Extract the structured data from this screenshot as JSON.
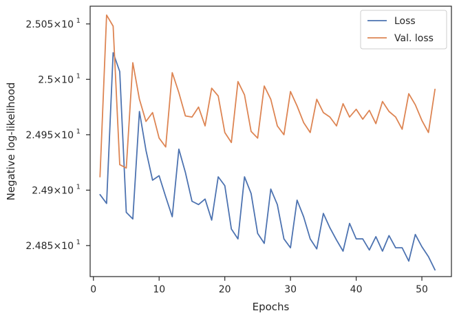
{
  "chart_data": {
    "type": "line",
    "title": "",
    "xlabel": "Epochs",
    "ylabel": "Negative log-likelihood",
    "xlim": [
      -0.5,
      54.5
    ],
    "ylim": [
      24.822,
      25.066
    ],
    "grid": false,
    "legend_position": "top-right",
    "x_ticks": [
      0,
      10,
      20,
      30,
      40,
      50
    ],
    "y_ticks": [
      24.85,
      24.9,
      24.95,
      25.0,
      25.05
    ],
    "x_tick_labels": [
      "0",
      "10",
      "20",
      "30",
      "40",
      "50"
    ],
    "y_tick_labels": [
      {
        "mantissa": "2.485",
        "exponent": "1"
      },
      {
        "mantissa": "2.49",
        "exponent": "1"
      },
      {
        "mantissa": "2.495",
        "exponent": "1"
      },
      {
        "mantissa": "2.5",
        "exponent": "1"
      },
      {
        "mantissa": "2.505",
        "exponent": "1"
      }
    ],
    "y_tick_times": "×10",
    "x": [
      1,
      2,
      3,
      4,
      5,
      6,
      7,
      8,
      9,
      10,
      11,
      12,
      13,
      14,
      15,
      16,
      17,
      18,
      19,
      20,
      21,
      22,
      23,
      24,
      25,
      26,
      27,
      28,
      29,
      30,
      31,
      32,
      33,
      34,
      35,
      36,
      37,
      38,
      39,
      40,
      41,
      42,
      43,
      44,
      45,
      46,
      47,
      48,
      49,
      50,
      51,
      52
    ],
    "series": [
      {
        "name": "Loss",
        "color": "#4c72b0",
        "values": [
          24.896,
          24.888,
          25.024,
          25.007,
          24.88,
          24.874,
          24.971,
          24.936,
          24.909,
          24.913,
          24.894,
          24.876,
          24.937,
          24.916,
          24.89,
          24.887,
          24.892,
          24.873,
          24.912,
          24.904,
          24.865,
          24.856,
          24.912,
          24.897,
          24.861,
          24.852,
          24.901,
          24.887,
          24.856,
          24.848,
          24.891,
          24.876,
          24.856,
          24.847,
          24.879,
          24.866,
          24.855,
          24.845,
          24.87,
          24.856,
          24.856,
          24.846,
          24.858,
          24.845,
          24.859,
          24.848,
          24.848,
          24.836,
          24.86,
          24.849,
          24.84,
          24.828
        ]
      },
      {
        "name": "Val. loss",
        "color": "#dd8452",
        "values": [
          24.912,
          25.058,
          25.048,
          24.923,
          24.92,
          25.015,
          24.982,
          24.962,
          24.97,
          24.947,
          24.939,
          25.006,
          24.988,
          24.967,
          24.966,
          24.975,
          24.958,
          24.992,
          24.985,
          24.952,
          24.943,
          24.998,
          24.986,
          24.953,
          24.947,
          24.994,
          24.982,
          24.958,
          24.95,
          24.989,
          24.976,
          24.961,
          24.952,
          24.982,
          24.97,
          24.966,
          24.958,
          24.978,
          24.966,
          24.973,
          24.964,
          24.972,
          24.96,
          24.98,
          24.971,
          24.966,
          24.955,
          24.987,
          24.977,
          24.963,
          24.952,
          24.991
        ]
      }
    ]
  }
}
